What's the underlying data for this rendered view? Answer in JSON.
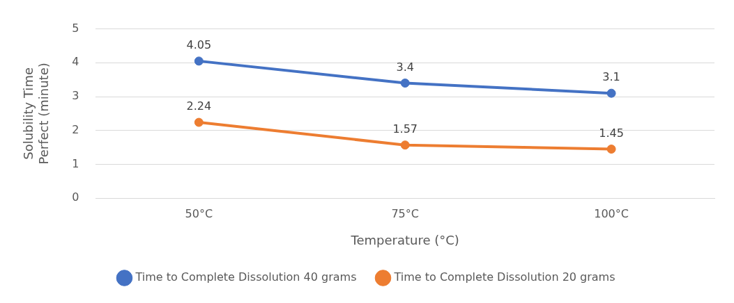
{
  "chart_data": {
    "type": "line",
    "xlabel": "Temperature (°C)",
    "ylabel": "Solubility Time Perfect (minute)",
    "categories": [
      "50°C",
      "75°C",
      "100°C"
    ],
    "series": [
      {
        "name": "Time to Complete Dissolution 40 grams",
        "color": "#4472c4",
        "values": [
          4.05,
          3.4,
          3.1
        ]
      },
      {
        "name": "Time to Complete Dissolution 20 grams",
        "color": "#ed7d31",
        "values": [
          2.24,
          1.57,
          1.45
        ]
      }
    ],
    "ylim": [
      0,
      5
    ],
    "yticks": [
      0,
      1,
      2,
      3,
      4,
      5
    ],
    "grid": "y",
    "legend": "bottom",
    "marker": "circle",
    "line_style": "solid",
    "data_labels": true
  }
}
